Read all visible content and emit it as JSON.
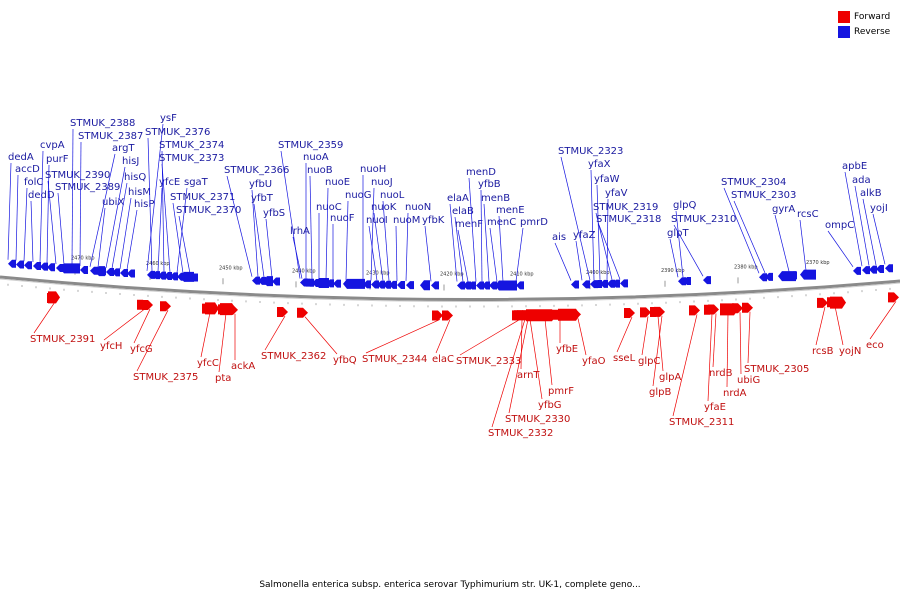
{
  "legend": {
    "forward": {
      "label": "Forward",
      "color": "#ee0000"
    },
    "reverse": {
      "label": "Reverse",
      "color": "#1515e0"
    }
  },
  "caption": "Salmonella enterica subsp. enterica serovar Typhimurium str. UK-1, complete geno...",
  "ticks": [
    "2470 kbp",
    "2460 kbp",
    "2450 kbp",
    "2440 kbp",
    "2430 kbp",
    "2420 kbp",
    "2410 kbp",
    "2400 kbp",
    "2390 kbp",
    "2380 kbp",
    "2370 kbp"
  ],
  "reverse_genes": [
    "dedA",
    "accD",
    "folC",
    "dedD",
    "cvpA",
    "purF",
    "STMUK_2390",
    "STMUK_2389",
    "STMUK_2388",
    "STMUK_2387",
    "argT",
    "ubiX",
    "hisJ",
    "hisQ",
    "hisM",
    "hisP",
    "ysF",
    "STMUK_2376",
    "yfcE",
    "STMUK_2374",
    "STMUK_2373",
    "sgaT",
    "STMUK_2371",
    "STMUK_2370",
    "STMUK_2366",
    "yfbU",
    "yfbT",
    "yfbS",
    "STMUK_2359",
    "nuoA",
    "lrhA",
    "nuoB",
    "nuoC",
    "nuoE",
    "nuoF",
    "nuoG",
    "nuoH",
    "nuoJ",
    "nuoI",
    "nuoK",
    "nuoL",
    "nuoM",
    "nuoN",
    "yfbK",
    "elaA",
    "elaB",
    "menF",
    "menD",
    "yfbB",
    "menB",
    "menC",
    "menE",
    "pmrD",
    "ais",
    "yfaZ",
    "STMUK_2323",
    "yfaX",
    "yfaW",
    "yfaV",
    "STMUK_2319",
    "STMUK_2318",
    "glpQ",
    "glpT",
    "STMUK_2310",
    "STMUK_2304",
    "STMUK_2303",
    "gyrA",
    "rcsC",
    "ompC",
    "apbE",
    "ada",
    "alkB",
    "yojI"
  ],
  "forward_genes": [
    "STMUK_2391",
    "yfcH",
    "yfcG",
    "STMUK_2375",
    "yfcC",
    "pta",
    "ackA",
    "STMUK_2362",
    "yfbQ",
    "STMUK_2344",
    "elaC",
    "STMUK_2333",
    "arnT",
    "yfbG",
    "STMUK_2330",
    "STMUK_2332",
    "pmrF",
    "yfbE",
    "yfaO",
    "sseL",
    "glpC",
    "glpA",
    "glpB",
    "STMUK_2311",
    "yfaE",
    "nrdB",
    "nrdA",
    "ubiG",
    "STMUK_2305",
    "rcsB",
    "yojN",
    "eco"
  ]
}
